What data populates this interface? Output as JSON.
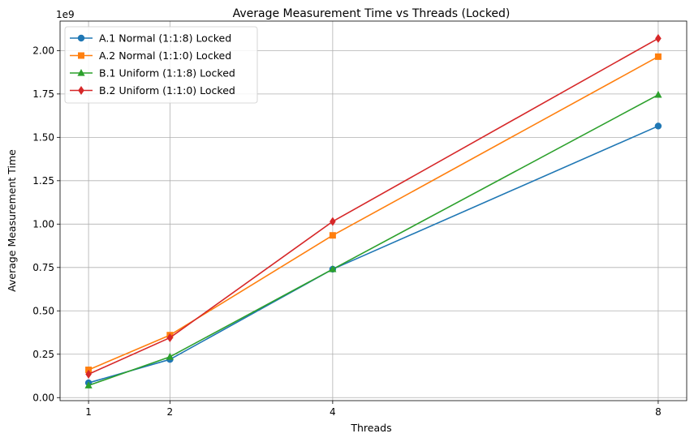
{
  "chart_data": {
    "type": "line",
    "title": "Average Measurement Time vs Threads (Locked)",
    "xlabel": "Threads",
    "ylabel": "Average Measurement Time",
    "y_offset_text": "1e9",
    "x": [
      1,
      2,
      4,
      8
    ],
    "x_ticks": [
      "1",
      "2",
      "4",
      "8"
    ],
    "y_ticks": [
      "0.00",
      "0.25",
      "0.50",
      "0.75",
      "1.00",
      "1.25",
      "1.50",
      "1.75",
      "2.00"
    ],
    "xlim": [
      0.65,
      8.35
    ],
    "ylim": [
      -0.0175,
      2.17
    ],
    "grid": true,
    "legend_position": "upper left",
    "series": [
      {
        "name": "A.1 Normal (1:1:8) Locked",
        "marker": "circle",
        "color": "#1f77b4",
        "values": [
          0.085,
          0.22,
          0.74,
          1.565
        ]
      },
      {
        "name": "A.2 Normal (1:1:0) Locked",
        "marker": "square",
        "color": "#ff7f0e",
        "values": [
          0.16,
          0.36,
          0.935,
          1.965
        ]
      },
      {
        "name": "B.1 Uniform (1:1:8) Locked",
        "marker": "triangle",
        "color": "#2ca02c",
        "values": [
          0.07,
          0.235,
          0.74,
          1.745
        ]
      },
      {
        "name": "B.2 Uniform (1:1:0) Locked",
        "marker": "diamond",
        "color": "#d62728",
        "values": [
          0.135,
          0.345,
          1.015,
          2.07
        ]
      }
    ]
  }
}
